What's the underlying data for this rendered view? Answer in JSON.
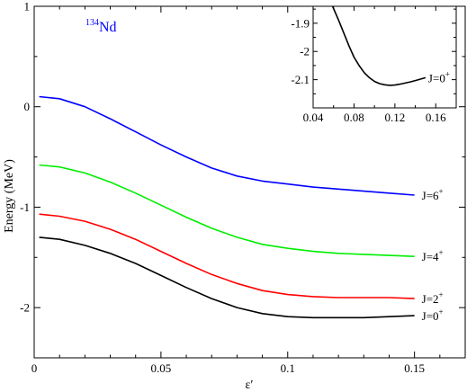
{
  "chart_data": {
    "type": "line",
    "xlabel": "ε′",
    "ylabel": "Energy (MeV)",
    "xlim": [
      0,
      0.17
    ],
    "ylim": [
      -2.5,
      1
    ],
    "xticks": [
      {
        "value": 0,
        "label": "0"
      },
      {
        "value": 0.05,
        "label": "0.05"
      },
      {
        "value": 0.1,
        "label": "0.1"
      },
      {
        "value": 0.15,
        "label": "0.15"
      }
    ],
    "yticks": [
      {
        "value": 1,
        "label": "1"
      },
      {
        "value": 0,
        "label": "0"
      },
      {
        "value": -1,
        "label": "-1"
      },
      {
        "value": -2,
        "label": "-2"
      }
    ],
    "grid": false,
    "annotation": {
      "sup": "134",
      "text": "Nd",
      "color": "#0000ff"
    },
    "series": [
      {
        "label": "J=6",
        "sup": "+",
        "color": "#0000ff",
        "x": [
          0.002,
          0.01,
          0.02,
          0.03,
          0.04,
          0.05,
          0.06,
          0.07,
          0.08,
          0.09,
          0.1,
          0.11,
          0.12,
          0.13,
          0.14,
          0.15
        ],
        "y": [
          0.1,
          0.08,
          0.0,
          -0.12,
          -0.25,
          -0.38,
          -0.5,
          -0.61,
          -0.69,
          -0.74,
          -0.77,
          -0.8,
          -0.82,
          -0.84,
          -0.86,
          -0.88
        ]
      },
      {
        "label": "J=4",
        "sup": "+",
        "color": "#00ee00",
        "x": [
          0.002,
          0.01,
          0.02,
          0.03,
          0.04,
          0.05,
          0.06,
          0.07,
          0.08,
          0.09,
          0.1,
          0.11,
          0.12,
          0.13,
          0.14,
          0.15
        ],
        "y": [
          -0.58,
          -0.6,
          -0.66,
          -0.75,
          -0.86,
          -0.98,
          -1.1,
          -1.21,
          -1.3,
          -1.37,
          -1.41,
          -1.44,
          -1.46,
          -1.47,
          -1.48,
          -1.49
        ]
      },
      {
        "label": "J=2",
        "sup": "+",
        "color": "#ff0000",
        "x": [
          0.002,
          0.01,
          0.02,
          0.03,
          0.04,
          0.05,
          0.06,
          0.07,
          0.08,
          0.09,
          0.1,
          0.11,
          0.12,
          0.13,
          0.14,
          0.15
        ],
        "y": [
          -1.07,
          -1.09,
          -1.14,
          -1.22,
          -1.32,
          -1.44,
          -1.56,
          -1.67,
          -1.76,
          -1.83,
          -1.87,
          -1.89,
          -1.9,
          -1.9,
          -1.9,
          -1.91
        ]
      },
      {
        "label": "J=0",
        "sup": "+",
        "color": "#000000",
        "x": [
          0.002,
          0.01,
          0.02,
          0.03,
          0.04,
          0.05,
          0.06,
          0.07,
          0.08,
          0.09,
          0.1,
          0.11,
          0.12,
          0.13,
          0.14,
          0.15
        ],
        "y": [
          -1.3,
          -1.32,
          -1.38,
          -1.46,
          -1.56,
          -1.68,
          -1.8,
          -1.91,
          -2.0,
          -2.06,
          -2.09,
          -2.1,
          -2.1,
          -2.1,
          -2.09,
          -2.08
        ]
      }
    ],
    "inset": {
      "xlim": [
        0.04,
        0.18
      ],
      "ylim": [
        -2.2,
        -1.84
      ],
      "xticks": [
        {
          "value": 0.04,
          "label": "0.04"
        },
        {
          "value": 0.08,
          "label": "0.08"
        },
        {
          "value": 0.12,
          "label": "0.12"
        },
        {
          "value": 0.16,
          "label": "0.16"
        }
      ],
      "yticks": [
        {
          "value": -1.9,
          "label": "-1.9"
        },
        {
          "value": -2,
          "label": "-2"
        },
        {
          "value": -2.1,
          "label": "-2.1"
        }
      ],
      "series": {
        "label": "J=0",
        "sup": "+",
        "color": "#000000",
        "x": [
          0.059,
          0.065,
          0.07,
          0.075,
          0.08,
          0.085,
          0.09,
          0.095,
          0.1,
          0.105,
          0.11,
          0.115,
          0.12,
          0.125,
          0.13,
          0.135,
          0.14,
          0.145,
          0.15
        ],
        "y": [
          -1.84,
          -1.89,
          -1.935,
          -1.98,
          -2.02,
          -2.05,
          -2.075,
          -2.093,
          -2.106,
          -2.114,
          -2.118,
          -2.12,
          -2.119,
          -2.116,
          -2.112,
          -2.108,
          -2.103,
          -2.098,
          -2.093
        ]
      }
    }
  }
}
